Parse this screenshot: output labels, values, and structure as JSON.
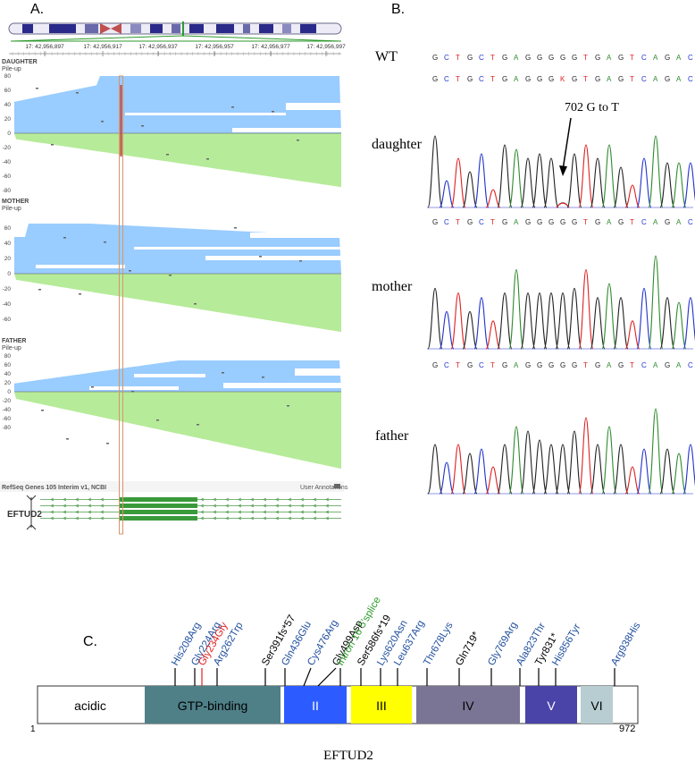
{
  "panel_a": {
    "label": "A.",
    "coords": [
      "17: 42,956,897",
      "17: 42,956,917",
      "17: 42,956,937",
      "17: 42,956,957",
      "17: 42,956,977",
      "17: 42,956,997"
    ],
    "tracks": [
      {
        "title": "DAUGHTER",
        "subtitle": "Pile-up",
        "ticks": [
          "80",
          "60",
          "40",
          "20",
          "0",
          "-20",
          "-40",
          "-60",
          "-80"
        ]
      },
      {
        "title": "MOTHER",
        "subtitle": "Pile-up",
        "ticks": [
          "60",
          "40",
          "20",
          "0",
          "-20",
          "-40",
          "-60"
        ]
      },
      {
        "title": "FATHER",
        "subtitle": "Pile-up",
        "ticks": [
          "80",
          "60",
          "40",
          "20",
          "0",
          "-20",
          "-40",
          "-60",
          "-80"
        ]
      }
    ],
    "refseq_label": "RefSeq Genes 105 Interim v1, NCBI",
    "user_annotations": "User Annotations",
    "gene_label": "EFTUD2"
  },
  "panel_b": {
    "label": "B.",
    "wt_label": "WT",
    "wt_seq": "GCTGCTGAGGGGGTGAGTCAGAC",
    "daughter_seq": "GCTGCTGAGGGKGTGAGTCAGAC",
    "mother_seq": "GCTGCTGAGGGGGTGAGTCAGAC",
    "father_seq": "GCTGCTGAGGGGGTGAGTCAGAC",
    "annotation": "702 G to T",
    "samples": [
      "daughter",
      "mother",
      "father"
    ],
    "base_colors": {
      "A": "#2e8b2e",
      "C": "#2233cc",
      "G": "#222222",
      "T": "#dd2222",
      "K": "#dd2222"
    }
  },
  "panel_c": {
    "label": "C.",
    "title": "EFTUD2",
    "start": "1",
    "end": "972",
    "domains": [
      {
        "label": "acidic",
        "color": "#ffffff",
        "text_color": "#000000"
      },
      {
        "label": "GTP-binding",
        "color": "#4f8088",
        "text_color": "#000000"
      },
      {
        "label": "II",
        "color": "#2c5cff",
        "text_color": "#ffffff"
      },
      {
        "label": "III",
        "color": "#ffff00",
        "text_color": "#000000"
      },
      {
        "label": "IV",
        "color": "#7b7595",
        "text_color": "#000000"
      },
      {
        "label": "V",
        "color": "#4b44a8",
        "text_color": "#ffffff"
      },
      {
        "label": "VI",
        "color": "#b7cdd2",
        "text_color": "#000000"
      }
    ],
    "mutations": [
      {
        "label": "His208Arg",
        "color": "#1f4e9e"
      },
      {
        "label": "Gly224Arg",
        "color": "#1f4e9e"
      },
      {
        "label": "Gly234Gly",
        "color": "#e02020"
      },
      {
        "label": "Arg262Trp",
        "color": "#1f4e9e"
      },
      {
        "label": "Ser391fs*57",
        "color": "#000000"
      },
      {
        "label": "Gln436Glu",
        "color": "#1f4e9e"
      },
      {
        "label": "Cys476Arg",
        "color": "#1f4e9e"
      },
      {
        "label": "Gly499Asp",
        "color": "#000000"
      },
      {
        "label": "Intron 16 5'splice",
        "color": "#2a9a2a"
      },
      {
        "label": "Ser586fs*19",
        "color": "#000000"
      },
      {
        "label": "Lys620Asn",
        "color": "#1f4e9e"
      },
      {
        "label": "Leu637Arg",
        "color": "#1f4e9e"
      },
      {
        "label": "Thr678Lys",
        "color": "#1f4e9e"
      },
      {
        "label": "Gln719*",
        "color": "#000000"
      },
      {
        "label": "Gly769Arg",
        "color": "#1f4e9e"
      },
      {
        "label": "Ala823Thr",
        "color": "#1f4e9e"
      },
      {
        "label": "Tyr831*",
        "color": "#000000"
      },
      {
        "label": "His856Tyr",
        "color": "#1f4e9e"
      },
      {
        "label": "Arg938His",
        "color": "#1f4e9e"
      }
    ]
  }
}
